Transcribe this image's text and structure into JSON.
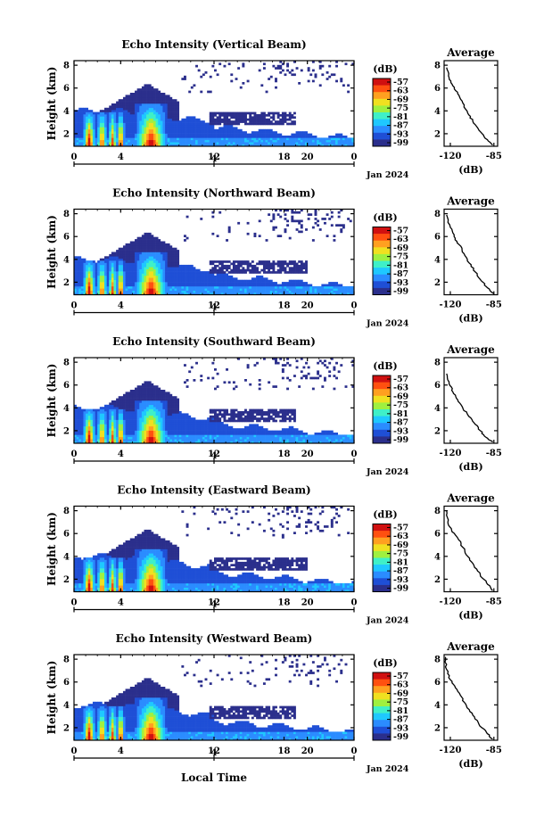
{
  "figure": {
    "x_axis_label": "Local Time",
    "ylabel": "Height (km)",
    "colorbar_unit": "(dB)",
    "date_label": "Jan 2024",
    "secondary_tick": "4",
    "avg_xlabel": "(dB)",
    "colormap": [
      "#2b2f8c",
      "#1f4fd6",
      "#2b8cff",
      "#1fc8ff",
      "#3ff0c8",
      "#9ff040",
      "#f0e020",
      "#ffa020",
      "#ff5010",
      "#d01010"
    ]
  },
  "chart_data": [
    {
      "type": "heatmap",
      "title": "Echo Intensity (Vertical Beam)",
      "ylabel": "Height (km)",
      "x_ticks": [
        "0",
        "4",
        "12",
        "18",
        "20",
        "0"
      ],
      "x_tick_hours": [
        0,
        4,
        12,
        18,
        20,
        24
      ],
      "y_ticks": [
        "2",
        "4",
        "6",
        "8"
      ],
      "xlim_hours": [
        0,
        24
      ],
      "ylim_km": [
        0.9,
        8.4
      ],
      "colorbar": {
        "unit": "(dB)",
        "ticks": [
          "-57",
          "-63",
          "-69",
          "-75",
          "-81",
          "-87",
          "-93",
          "-99"
        ]
      },
      "date_label": "Jan 2024",
      "average_profile": {
        "title": "Average",
        "xlabel": "(dB)",
        "x_ticks": [
          "-120",
          "-85"
        ],
        "y_ticks": [
          "2",
          "4",
          "6",
          "8"
        ],
        "xlim_db": [
          -125,
          -82
        ],
        "points_db_km": [
          [
            -123,
            7.8
          ],
          [
            -121,
            6.9
          ],
          [
            -118,
            6.2
          ],
          [
            -114,
            5.5
          ],
          [
            -110,
            4.7
          ],
          [
            -106,
            3.8
          ],
          [
            -102,
            3.1
          ],
          [
            -97,
            2.3
          ],
          [
            -92,
            1.6
          ],
          [
            -86,
            1.0
          ]
        ]
      }
    },
    {
      "type": "heatmap",
      "title": "Echo Intensity (Northward Beam)",
      "ylabel": "Height (km)",
      "x_ticks": [
        "0",
        "4",
        "12",
        "18",
        "20",
        "0"
      ],
      "x_tick_hours": [
        0,
        4,
        12,
        18,
        20,
        24
      ],
      "y_ticks": [
        "2",
        "4",
        "6",
        "8"
      ],
      "xlim_hours": [
        0,
        24
      ],
      "ylim_km": [
        0.9,
        8.4
      ],
      "colorbar": {
        "unit": "(dB)",
        "ticks": [
          "-57",
          "-63",
          "-69",
          "-75",
          "-81",
          "-87",
          "-93",
          "-99"
        ]
      },
      "date_label": "Jan 2024",
      "average_profile": {
        "title": "Average",
        "xlabel": "(dB)",
        "x_ticks": [
          "-120",
          "-85"
        ],
        "y_ticks": [
          "2",
          "4",
          "6",
          "8"
        ],
        "xlim_db": [
          -125,
          -82
        ],
        "points_db_km": [
          [
            -123,
            7.9
          ],
          [
            -120,
            6.8
          ],
          [
            -117,
            6.0
          ],
          [
            -113,
            5.3
          ],
          [
            -109,
            4.5
          ],
          [
            -105,
            3.7
          ],
          [
            -100,
            2.9
          ],
          [
            -95,
            2.1
          ],
          [
            -90,
            1.5
          ],
          [
            -85,
            1.0
          ]
        ]
      }
    },
    {
      "type": "heatmap",
      "title": "Echo Intensity (Southward Beam)",
      "ylabel": "Height (km)",
      "x_ticks": [
        "0",
        "4",
        "12",
        "18",
        "20",
        "0"
      ],
      "x_tick_hours": [
        0,
        4,
        12,
        18,
        20,
        24
      ],
      "y_ticks": [
        "2",
        "4",
        "6",
        "8"
      ],
      "xlim_hours": [
        0,
        24
      ],
      "ylim_km": [
        0.9,
        8.4
      ],
      "colorbar": {
        "unit": "(dB)",
        "ticks": [
          "-57",
          "-63",
          "-69",
          "-75",
          "-81",
          "-87",
          "-93",
          "-99"
        ]
      },
      "date_label": "Jan 2024",
      "average_profile": {
        "title": "Average",
        "xlabel": "(dB)",
        "x_ticks": [
          "-120",
          "-85"
        ],
        "y_ticks": [
          "2",
          "4",
          "6",
          "8"
        ],
        "xlim_db": [
          -125,
          -82
        ],
        "points_db_km": [
          [
            -123,
            7.0
          ],
          [
            -121,
            6.1
          ],
          [
            -118,
            5.4
          ],
          [
            -114,
            4.7
          ],
          [
            -110,
            4.0
          ],
          [
            -106,
            3.4
          ],
          [
            -101,
            2.7
          ],
          [
            -96,
            2.0
          ],
          [
            -91,
            1.4
          ],
          [
            -86,
            1.0
          ]
        ]
      }
    },
    {
      "type": "heatmap",
      "title": "Echo Intensity (Eastward Beam)",
      "ylabel": "Height (km)",
      "x_ticks": [
        "0",
        "4",
        "12",
        "18",
        "20",
        "0"
      ],
      "x_tick_hours": [
        0,
        4,
        12,
        18,
        20,
        24
      ],
      "y_ticks": [
        "2",
        "4",
        "6",
        "8"
      ],
      "xlim_hours": [
        0,
        24
      ],
      "ylim_km": [
        0.9,
        8.4
      ],
      "colorbar": {
        "unit": "(dB)",
        "ticks": [
          "-57",
          "-63",
          "-69",
          "-75",
          "-81",
          "-87",
          "-93",
          "-99"
        ]
      },
      "date_label": "Jan 2024",
      "average_profile": {
        "title": "Average",
        "xlabel": "(dB)",
        "x_ticks": [
          "-120",
          "-85"
        ],
        "y_ticks": [
          "2",
          "4",
          "6",
          "8"
        ],
        "xlim_db": [
          -125,
          -82
        ],
        "points_db_km": [
          [
            -123,
            8.0
          ],
          [
            -122,
            7.0
          ],
          [
            -119,
            6.3
          ],
          [
            -114,
            5.6
          ],
          [
            -110,
            4.8
          ],
          [
            -106,
            4.0
          ],
          [
            -101,
            3.2
          ],
          [
            -96,
            2.4
          ],
          [
            -91,
            1.7
          ],
          [
            -86,
            1.0
          ]
        ]
      }
    },
    {
      "type": "heatmap",
      "title": "Echo Intensity (Westward Beam)",
      "ylabel": "Height (km)",
      "x_ticks": [
        "0",
        "4",
        "12",
        "18",
        "20",
        "0"
      ],
      "x_tick_hours": [
        0,
        4,
        12,
        18,
        20,
        24
      ],
      "y_ticks": [
        "2",
        "4",
        "6",
        "8"
      ],
      "xlim_hours": [
        0,
        24
      ],
      "ylim_km": [
        0.9,
        8.4
      ],
      "colorbar": {
        "unit": "(dB)",
        "ticks": [
          "-57",
          "-63",
          "-69",
          "-75",
          "-81",
          "-87",
          "-93",
          "-99"
        ]
      },
      "date_label": "Jan 2024",
      "average_profile": {
        "title": "Average",
        "xlabel": "(dB)",
        "x_ticks": [
          "-120",
          "-85"
        ],
        "y_ticks": [
          "2",
          "4",
          "6",
          "8"
        ],
        "xlim_db": [
          -125,
          -82
        ],
        "points_db_km": [
          [
            -124,
            8.2
          ],
          [
            -123,
            7.1
          ],
          [
            -120,
            6.2
          ],
          [
            -116,
            5.5
          ],
          [
            -111,
            4.7
          ],
          [
            -107,
            3.9
          ],
          [
            -102,
            3.1
          ],
          [
            -97,
            2.3
          ],
          [
            -91,
            1.6
          ],
          [
            -86,
            1.0
          ]
        ]
      }
    }
  ]
}
